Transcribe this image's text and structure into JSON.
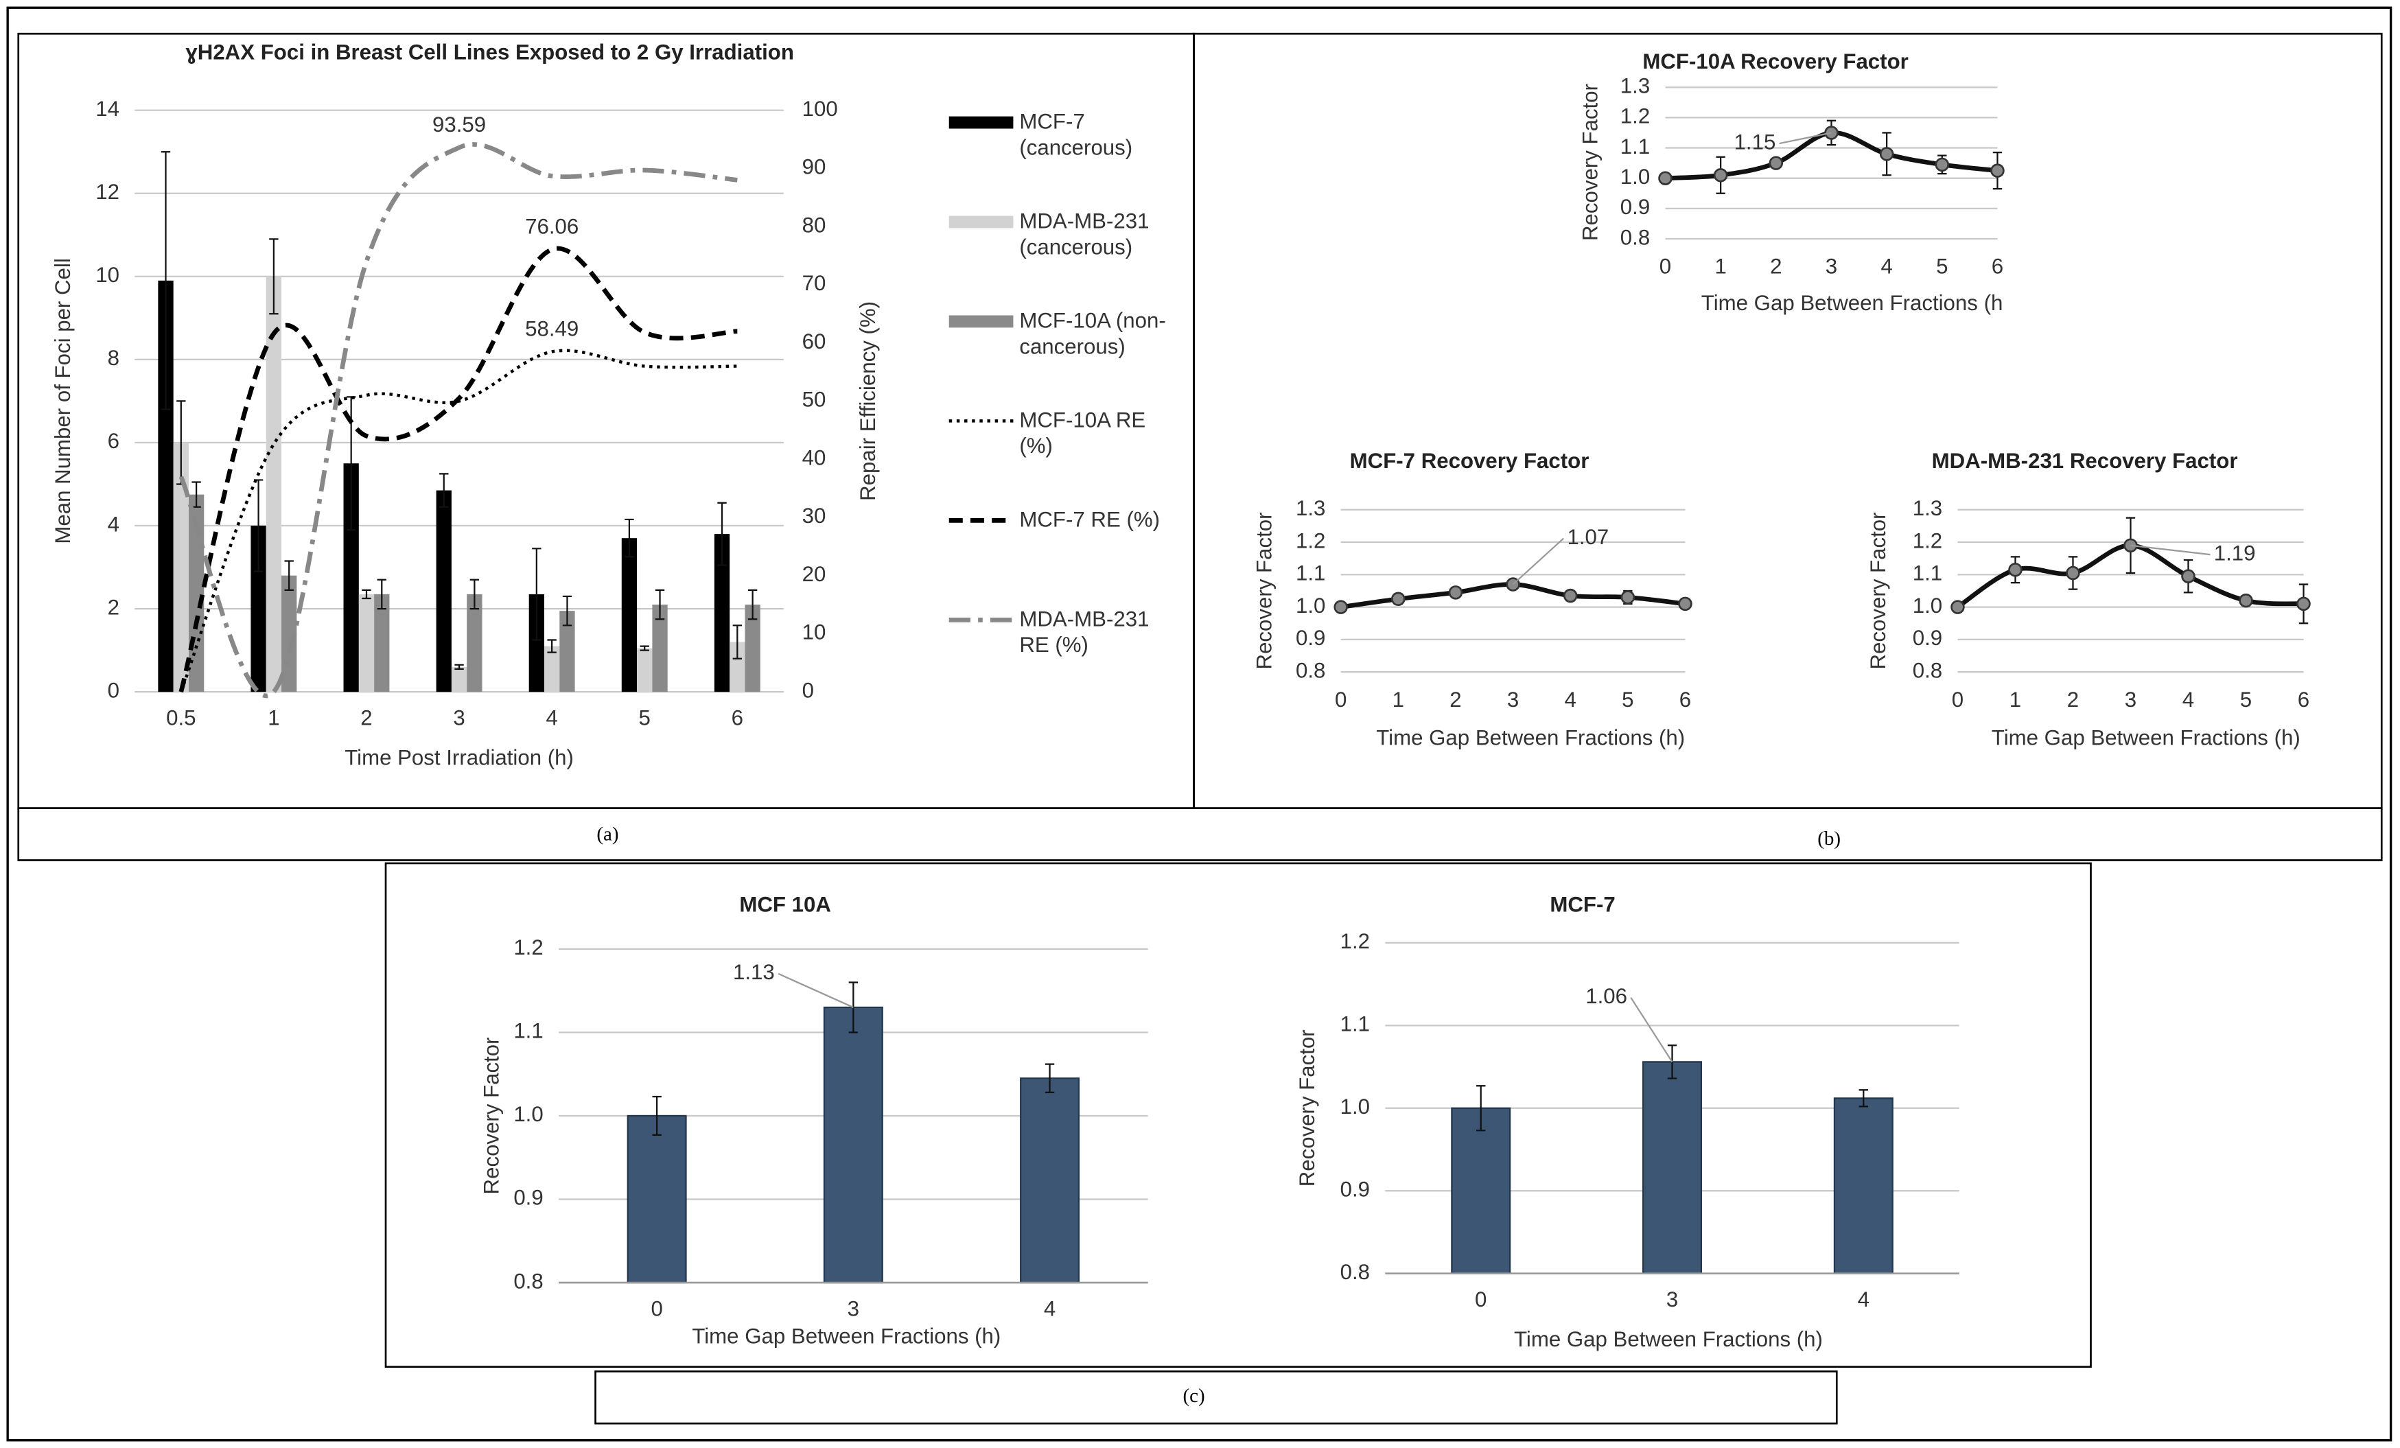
{
  "panels": [
    "(a)",
    "(b)",
    "(c)"
  ],
  "chart_data": [
    {
      "type": "bar",
      "title": "ɣH2AX Foci in Breast Cell Lines Exposed to 2 Gy Irradiation",
      "x_label": "Time Post Irradiation (h)",
      "y_label": "Mean Number of Foci per Cell",
      "y2_label": "Repair Efficiency (%)",
      "categories": [
        "0.5",
        "1",
        "2",
        "3",
        "4",
        "5",
        "6"
      ],
      "ylim": [
        0,
        14
      ],
      "yticks": [
        0,
        2,
        4,
        6,
        8,
        10,
        12,
        14
      ],
      "y2lim": [
        0,
        100
      ],
      "y2ticks": [
        0,
        10,
        20,
        30,
        40,
        50,
        60,
        70,
        80,
        90,
        100
      ],
      "grid": true,
      "legend": "right",
      "series": [
        {
          "name": "MCF-7 (cancerous)",
          "type": "bar",
          "color": "#000000",
          "values": [
            9.9,
            4.0,
            5.5,
            4.85,
            2.35,
            3.7,
            3.8
          ],
          "errors": [
            3.1,
            1.1,
            1.6,
            0.4,
            1.1,
            0.45,
            0.75
          ]
        },
        {
          "name": "MDA-MB-231 (cancerous)",
          "type": "bar",
          "color": "#d2d2d2",
          "values": [
            6.0,
            10.0,
            2.35,
            0.6,
            1.1,
            1.05,
            1.2
          ],
          "errors": [
            1.0,
            0.9,
            0.1,
            0.05,
            0.15,
            0.05,
            0.4
          ]
        },
        {
          "name": "MCF-10A (non-cancerous)",
          "type": "bar",
          "color": "#8a8a8a",
          "values": [
            4.75,
            2.8,
            2.35,
            2.35,
            1.95,
            2.1,
            2.1
          ],
          "errors": [
            0.3,
            0.35,
            0.35,
            0.35,
            0.35,
            0.35,
            0.35
          ]
        },
        {
          "name": "MCF-10A RE (%)",
          "type": "line",
          "axis": "y2",
          "dash": "dotted",
          "color": "#000000",
          "values": [
            0,
            42.6,
            51,
            50,
            58.49,
            56,
            56
          ],
          "value_labels": [
            null,
            null,
            null,
            null,
            "58.49",
            null,
            null
          ]
        },
        {
          "name": "MCF-7 RE (%)",
          "type": "line",
          "axis": "y2",
          "dash": "dashed",
          "color": "#000000",
          "values": [
            0,
            61.6,
            44,
            50.5,
            76.06,
            61.8,
            62
          ],
          "value_labels": [
            null,
            null,
            null,
            null,
            "76.06",
            null,
            null
          ]
        },
        {
          "name": "MDA-MB-231 RE (%)",
          "type": "line",
          "axis": "y2",
          "dash": "dashdot",
          "color": "#888888",
          "values": [
            37,
            0,
            74,
            93.59,
            88.7,
            89.7,
            88
          ],
          "value_labels": [
            null,
            null,
            null,
            "93.59",
            null,
            null,
            null
          ]
        }
      ]
    },
    {
      "type": "line",
      "title": "MCF-10A Recovery Factor",
      "x_label": "Time Gap Between Fractions (h",
      "y_label": "Recovery Factor",
      "x": [
        0,
        1,
        2,
        3,
        4,
        5,
        6
      ],
      "xlim": [
        0,
        6
      ],
      "xticks": [
        0,
        1,
        2,
        3,
        4,
        5,
        6
      ],
      "ylim": [
        0.8,
        1.3
      ],
      "yticks": [
        0.8,
        0.9,
        {
          "value": 1,
          "label": "1.0"
        },
        1.1,
        1.2,
        1.3
      ],
      "grid": true,
      "color": "#111111",
      "values": [
        1.0,
        1.01,
        1.05,
        1.15,
        1.08,
        1.045,
        1.025
      ],
      "errors": [
        0,
        0.06,
        0.01,
        0.04,
        0.07,
        0.03,
        0.06
      ],
      "value_labels": [
        null,
        null,
        null,
        "1.15",
        null,
        null,
        null
      ]
    },
    {
      "type": "line",
      "title": "MCF-7 Recovery Factor",
      "x_label": "Time Gap Between Fractions (h)",
      "y_label": "Recovery Factor",
      "x": [
        0,
        1,
        2,
        3,
        4,
        5,
        6
      ],
      "xlim": [
        0,
        6
      ],
      "xticks": [
        0,
        1,
        2,
        3,
        4,
        5,
        6
      ],
      "ylim": [
        0.8,
        1.3
      ],
      "yticks": [
        0.8,
        0.9,
        {
          "value": 1,
          "label": "1.0"
        },
        1.1,
        1.2,
        1.3
      ],
      "grid": true,
      "color": "#111111",
      "values": [
        1.0,
        1.025,
        1.045,
        1.07,
        1.035,
        1.03,
        1.01
      ],
      "errors": [
        0,
        0.015,
        0.015,
        0.01,
        0.015,
        0.02,
        0.015
      ],
      "value_labels": [
        null,
        null,
        null,
        "1.07",
        null,
        null,
        null
      ]
    },
    {
      "type": "line",
      "title": "MDA-MB-231 Recovery Factor",
      "x_label": "Time Gap Between Fractions (h)",
      "y_label": "Recovery Factor",
      "x": [
        0,
        1,
        2,
        3,
        4,
        5,
        6
      ],
      "xlim": [
        0,
        6
      ],
      "xticks": [
        0,
        1,
        2,
        3,
        4,
        5,
        6
      ],
      "ylim": [
        0.8,
        1.3
      ],
      "yticks": [
        0.8,
        0.9,
        {
          "value": 1,
          "label": "1.0"
        },
        1.1,
        1.2,
        1.3
      ],
      "grid": true,
      "color": "#111111",
      "values": [
        1.0,
        1.115,
        1.105,
        1.19,
        1.095,
        1.02,
        1.01
      ],
      "errors": [
        0,
        0.04,
        0.05,
        0.085,
        0.05,
        0.015,
        0.06
      ],
      "value_labels": [
        null,
        null,
        null,
        "1.19",
        null,
        null,
        null
      ]
    },
    {
      "type": "bar",
      "title": "MCF 10A",
      "x_label": "Time Gap Between Fractions (h)",
      "y_label": "Recovery Factor",
      "categories": [
        "0",
        "3",
        "4"
      ],
      "ylim": [
        0.8,
        1.2
      ],
      "yticks": [
        0.8,
        0.9,
        {
          "value": 1,
          "label": "1.0"
        },
        1.1,
        1.2
      ],
      "grid": true,
      "color": "#3d5673",
      "values": [
        1.0,
        1.13,
        1.045
      ],
      "errors": [
        0.023,
        0.03,
        0.017
      ],
      "value_labels": [
        null,
        "1.13",
        null
      ]
    },
    {
      "type": "bar",
      "title": "MCF-7",
      "x_label": "Time Gap Between Fractions (h)",
      "y_label": "Recovery Factor",
      "categories": [
        "0",
        "3",
        "4"
      ],
      "ylim": [
        0.8,
        1.2
      ],
      "yticks": [
        0.8,
        0.9,
        {
          "value": 1,
          "label": "1.0"
        },
        1.1,
        1.2
      ],
      "grid": true,
      "color": "#3d5673",
      "values": [
        1.0,
        1.056,
        1.012
      ],
      "errors": [
        0.027,
        0.02,
        0.01
      ],
      "value_labels": [
        null,
        "1.06",
        null
      ]
    }
  ]
}
